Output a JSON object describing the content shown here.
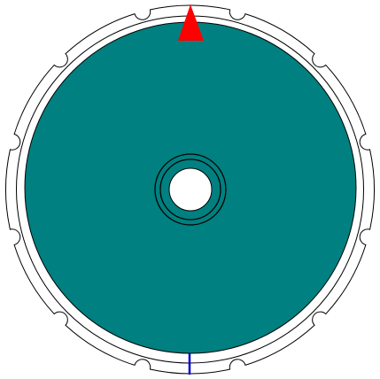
{
  "puzzle": {
    "notch_count": 12,
    "colors": {
      "background": "#ffffff",
      "ring_fill": "#ffffff",
      "ring_stroke": "#000000",
      "disc_fill": "#008080",
      "disc_stroke": "#000000",
      "hub_stroke": "#000000",
      "hub_hole": "#ffffff",
      "pointer": "#ff0000",
      "indicator": "#0000cc"
    },
    "pointer_label": "top-pointer",
    "indicator_label": "bottom-indicator"
  }
}
